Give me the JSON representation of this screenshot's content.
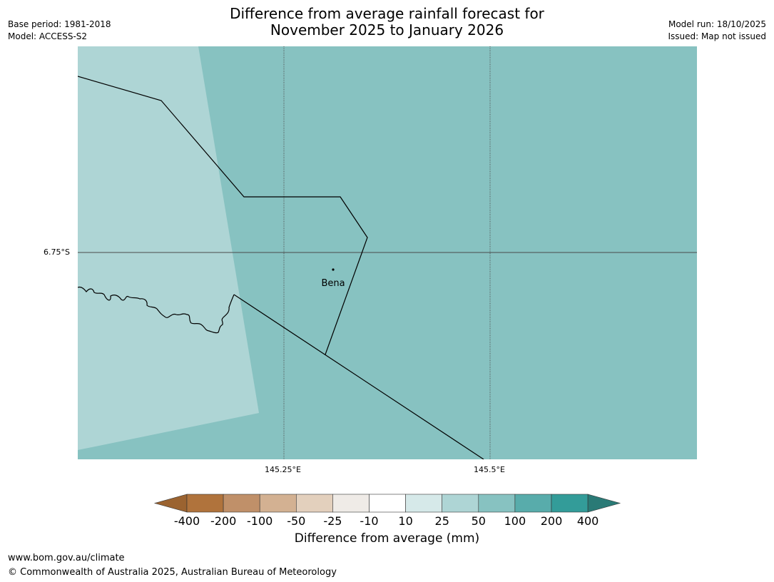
{
  "header": {
    "base_period": "Base period: 1981-2018",
    "model": "Model: ACCESS-S2",
    "model_run": "Model run: 18/10/2025",
    "issued": "Issued: Map not issued"
  },
  "title": {
    "line1": "Difference from average rainfall forecast for",
    "line2": "November 2025 to January 2026"
  },
  "map": {
    "lat_labels": [
      "6.75°S"
    ],
    "lon_labels": [
      "145.25°E",
      "145.5°E"
    ],
    "place": {
      "name": "Bena"
    },
    "colors": {
      "zone_10_25": "#aed5d5",
      "zone_25_50": "#87c2c1",
      "boundary": "#000000",
      "gridline": "#4a4a4a"
    }
  },
  "colorbar": {
    "title": "Difference from average (mm)",
    "ticks": [
      "-400",
      "-200",
      "-100",
      "-50",
      "-25",
      "-10",
      "10",
      "25",
      "50",
      "100",
      "200",
      "400"
    ],
    "colors": [
      "#9b6330",
      "#b0733c",
      "#c09069",
      "#d3b192",
      "#e3d0bd",
      "#efebe7",
      "#ffffff",
      "#d6e9e9",
      "#aed5d5",
      "#87c2c1",
      "#58acab",
      "#339c99",
      "#2a7a76"
    ]
  },
  "footer": {
    "url": "www.bom.gov.au/climate",
    "copyright": "© Commonwealth of Australia 2025, Australian Bureau of Meteorology"
  }
}
